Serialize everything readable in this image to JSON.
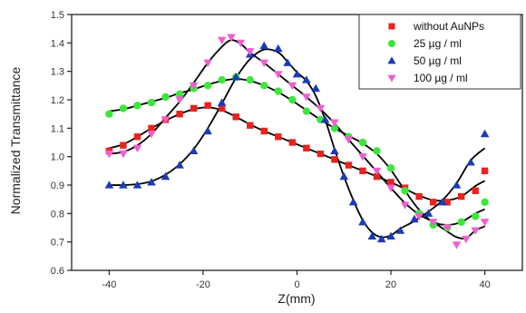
{
  "chart_data": {
    "type": "scatter",
    "xlabel": "Z(mm)",
    "ylabel": "Normalized Transmittance",
    "xlim": [
      -48,
      48
    ],
    "ylim": [
      0.6,
      1.5
    ],
    "xticks": [
      -40,
      -20,
      0,
      20,
      40
    ],
    "yticks": [
      0.6,
      0.7,
      0.8,
      0.9,
      1.0,
      1.1,
      1.2,
      1.3,
      1.4,
      1.5
    ],
    "xtick_labels": [
      "-40",
      "-20",
      "0",
      "20",
      "40"
    ],
    "ytick_labels": [
      "0.6",
      "0.7",
      "0.8",
      "0.9",
      "1.0",
      "1.1",
      "1.2",
      "1.3",
      "1.4",
      "1.5"
    ],
    "legend_position": "top-right",
    "fit_color": "#000000",
    "series": [
      {
        "name": "without AuNPs",
        "marker": "square",
        "color": "#e8231f",
        "x": [
          -40,
          -37,
          -34,
          -31,
          -28,
          -25,
          -22,
          -19,
          -16,
          -13,
          -10,
          -7,
          -4,
          -1,
          2,
          5,
          8,
          11,
          14,
          17,
          20,
          23,
          26,
          29,
          32,
          35,
          38,
          40
        ],
        "y": [
          1.02,
          1.04,
          1.07,
          1.1,
          1.13,
          1.15,
          1.17,
          1.18,
          1.17,
          1.14,
          1.11,
          1.09,
          1.07,
          1.05,
          1.03,
          1.01,
          0.99,
          0.97,
          0.95,
          0.93,
          0.91,
          0.89,
          0.86,
          0.84,
          0.84,
          0.86,
          0.88,
          0.95
        ]
      },
      {
        "name": "25 µg / ml",
        "marker": "circle",
        "color": "#3ce63c",
        "x": [
          -40,
          -37,
          -34,
          -31,
          -28,
          -25,
          -22,
          -19,
          -16,
          -13,
          -10,
          -7,
          -4,
          -1,
          2,
          5,
          8,
          11,
          14,
          17,
          20,
          23,
          26,
          29,
          32,
          35,
          38,
          40
        ],
        "y": [
          1.15,
          1.17,
          1.18,
          1.19,
          1.21,
          1.22,
          1.24,
          1.25,
          1.27,
          1.28,
          1.27,
          1.25,
          1.23,
          1.2,
          1.16,
          1.13,
          1.1,
          1.07,
          1.05,
          1.02,
          0.96,
          0.88,
          0.8,
          0.76,
          0.75,
          0.77,
          0.79,
          0.84
        ]
      },
      {
        "name": "50 µg / ml",
        "marker": "triangle-up",
        "color": "#1c3bb3",
        "x": [
          -40,
          -37,
          -34,
          -31,
          -28,
          -25,
          -22,
          -19,
          -16,
          -13,
          -10,
          -7,
          -4,
          -2,
          0,
          2,
          4,
          6,
          8,
          10,
          12,
          14,
          16,
          18,
          20,
          22,
          25,
          28,
          31,
          34,
          37,
          40
        ],
        "y": [
          0.9,
          0.9,
          0.9,
          0.91,
          0.93,
          0.97,
          1.02,
          1.09,
          1.19,
          1.28,
          1.36,
          1.39,
          1.38,
          1.33,
          1.29,
          1.27,
          1.24,
          1.13,
          1.02,
          0.93,
          0.84,
          0.77,
          0.72,
          0.71,
          0.72,
          0.74,
          0.78,
          0.8,
          0.84,
          0.9,
          0.98,
          1.08
        ]
      },
      {
        "name": "100 µg / ml",
        "marker": "triangle-down",
        "color": "#ee5fd0",
        "x": [
          -40,
          -37,
          -34,
          -31,
          -28,
          -25,
          -22,
          -19,
          -16,
          -14,
          -12,
          -10,
          -7,
          -4,
          -1,
          2,
          5,
          8,
          11,
          14,
          17,
          20,
          23,
          26,
          29,
          32,
          34,
          36,
          38,
          40
        ],
        "y": [
          1.01,
          1.01,
          1.03,
          1.08,
          1.13,
          1.2,
          1.25,
          1.33,
          1.41,
          1.42,
          1.4,
          1.37,
          1.33,
          1.29,
          1.25,
          1.21,
          1.17,
          1.12,
          1.06,
          1.0,
          0.95,
          0.89,
          0.83,
          0.79,
          0.77,
          0.75,
          0.69,
          0.71,
          0.74,
          0.77
        ]
      }
    ]
  }
}
